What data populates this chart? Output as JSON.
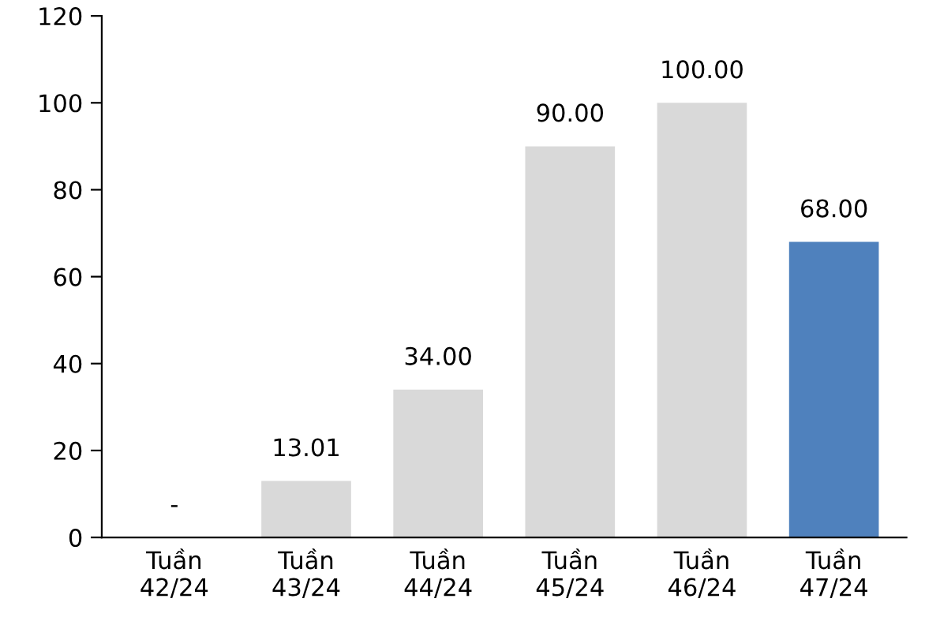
{
  "chart_data": {
    "type": "bar",
    "categories": [
      "Tuần\n42/24",
      "Tuần\n43/24",
      "Tuần\n44/24",
      "Tuần\n45/24",
      "Tuần\n46/24",
      "Tuần\n47/24"
    ],
    "values": [
      null,
      13.01,
      34.0,
      90.0,
      100.0,
      68.0
    ],
    "colors": [
      "#d9d9d9",
      "#d9d9d9",
      "#d9d9d9",
      "#d9d9d9",
      "#d9d9d9",
      "#4f81bd"
    ],
    "value_labels": [
      "-",
      "13.01",
      "34.00",
      "90.00",
      "100.00",
      "68.00"
    ],
    "ylim": [
      0,
      120
    ],
    "yticks": [
      0,
      20,
      40,
      60,
      80,
      100,
      120
    ],
    "grid": false,
    "legend": false
  }
}
